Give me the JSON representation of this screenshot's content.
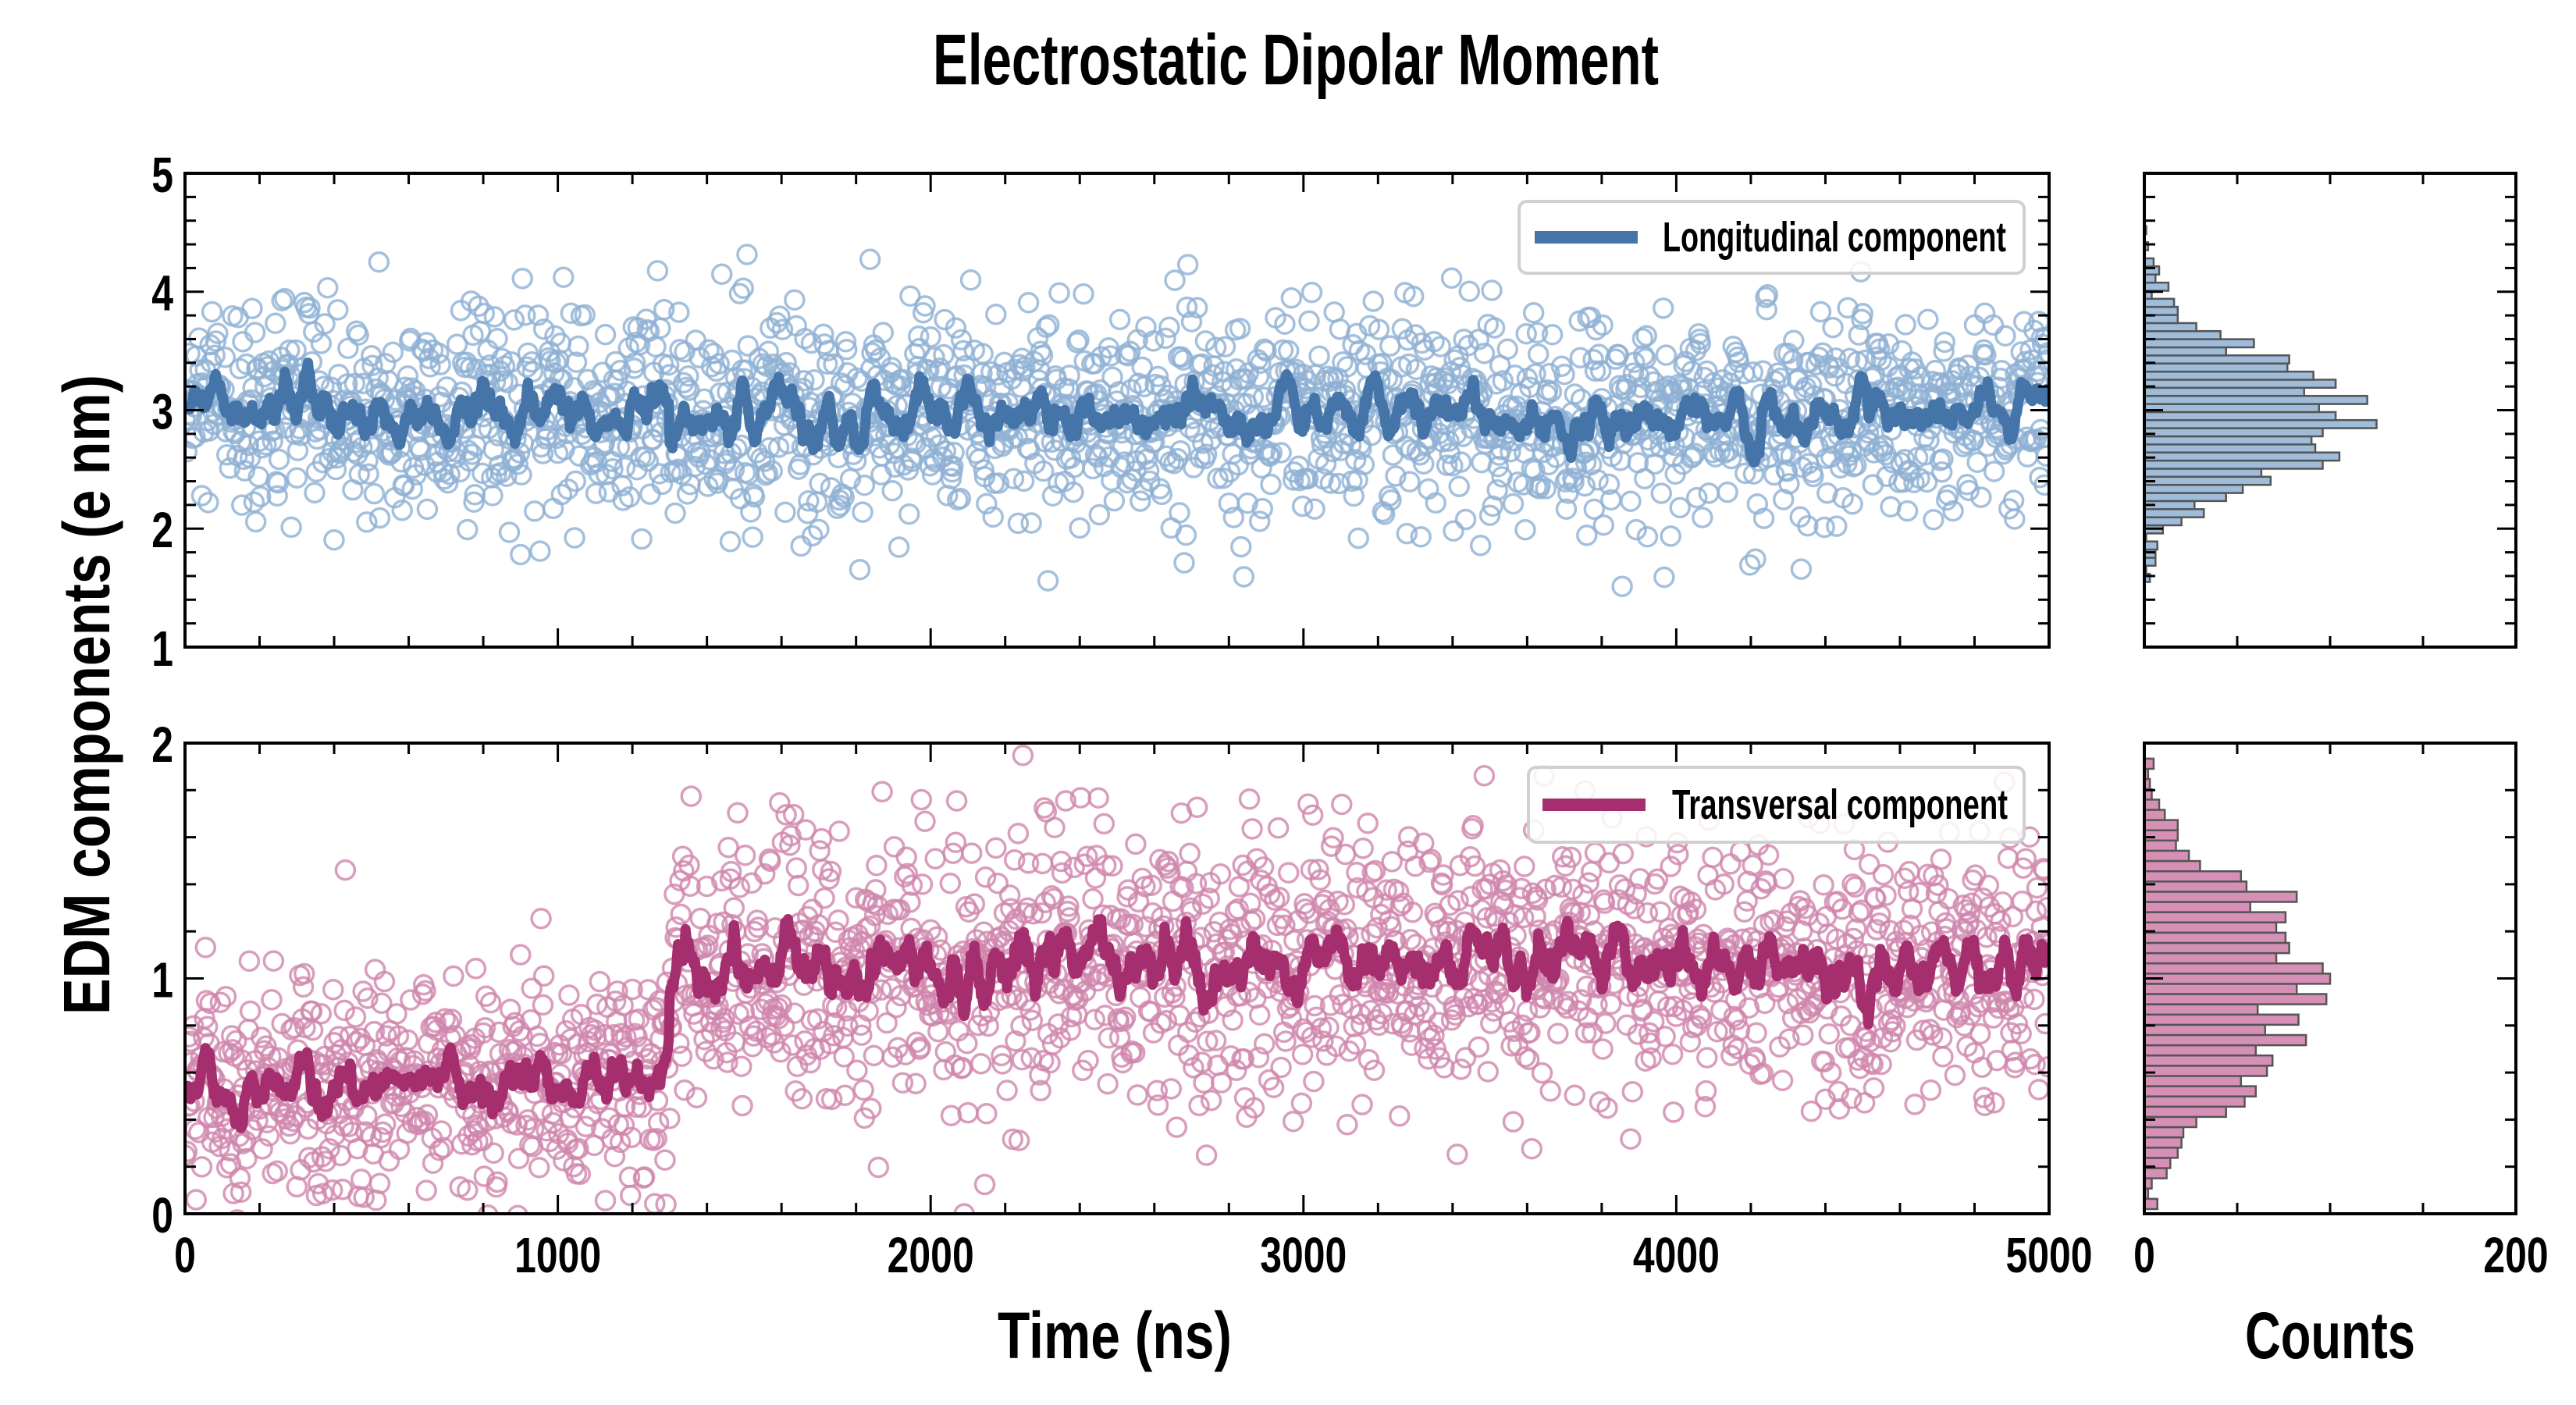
{
  "title": "Electrostatic Dipolar Moment",
  "ylabel": "EDM components (e nm)",
  "colors": {
    "longitudinal_line": "#4574a8",
    "longitudinal_points": "#8fb0d3",
    "longitudinal_hist": "#9fbddb",
    "transversal_line": "#a52f6e",
    "transversal_points": "#cf86ad",
    "transversal_hist": "#d690b6",
    "hist_edge": "#555555"
  },
  "chart_data": [
    {
      "id": "longitudinal",
      "type": "scatter",
      "title": "",
      "legend": "Longitudinal component",
      "legend_placement": "top-right",
      "xlabel": "",
      "ylabel": "EDM components (e nm)",
      "xlim": [
        0,
        5000
      ],
      "ylim": [
        1,
        5
      ],
      "yticks": [
        "1",
        "2",
        "3",
        "4",
        "5"
      ],
      "scatter_summary": {
        "n_points": 2000,
        "dt_ns": 2.5,
        "segments": [
          {
            "from": 0,
            "to": 5000,
            "mean": 2.95,
            "sd": 0.45
          }
        ]
      },
      "line": "running mean of points (window 12)"
    },
    {
      "id": "transversal",
      "type": "scatter",
      "legend": "Transversal component",
      "legend_placement": "top-right",
      "xlabel": "Time (ns)",
      "xlim": [
        0,
        5000
      ],
      "ylim": [
        0,
        2
      ],
      "xticks": [
        "0",
        "1000",
        "2000",
        "3000",
        "4000",
        "5000"
      ],
      "yticks": [
        "0",
        "1",
        "2"
      ],
      "scatter_summary": {
        "n_points": 2000,
        "dt_ns": 2.5,
        "segments": [
          {
            "from": 0,
            "to": 1300,
            "mean": 0.55,
            "sd": 0.24
          },
          {
            "from": 1300,
            "to": 5000,
            "mean": 1.05,
            "sd": 0.3
          }
        ]
      },
      "line": "running mean of points (window 12)"
    },
    {
      "id": "longitudinal_hist",
      "type": "bar",
      "orientation": "horizontal",
      "ylim": [
        1,
        5
      ],
      "xlim": [
        0,
        200
      ],
      "bin_start": 1.55,
      "bin_width": 0.0683,
      "counts": [
        3,
        1,
        6,
        6,
        7,
        1,
        10,
        20,
        32,
        27,
        44,
        53,
        68,
        63,
        96,
        105,
        92,
        90,
        96,
        125,
        103,
        94,
        120,
        86,
        103,
        91,
        77,
        78,
        44,
        59,
        41,
        28,
        18,
        18,
        16,
        4,
        13,
        6,
        8,
        5,
        0,
        2,
        0,
        1
      ]
    },
    {
      "id": "transversal_hist",
      "type": "bar",
      "orientation": "horizontal",
      "ylim": [
        0,
        2
      ],
      "xlim": [
        0,
        200
      ],
      "xticks": [
        "0",
        "200"
      ],
      "xlabel": "Counts",
      "bin_start": 0.02,
      "bin_width": 0.0435,
      "counts": [
        7,
        2,
        4,
        12,
        14,
        18,
        20,
        21,
        28,
        44,
        54,
        60,
        52,
        66,
        69,
        60,
        87,
        65,
        83,
        61,
        98,
        82,
        100,
        96,
        71,
        78,
        76,
        71,
        76,
        57,
        82,
        55,
        52,
        30,
        24,
        17,
        18,
        18,
        11,
        8,
        4,
        3,
        2,
        5
      ]
    }
  ]
}
